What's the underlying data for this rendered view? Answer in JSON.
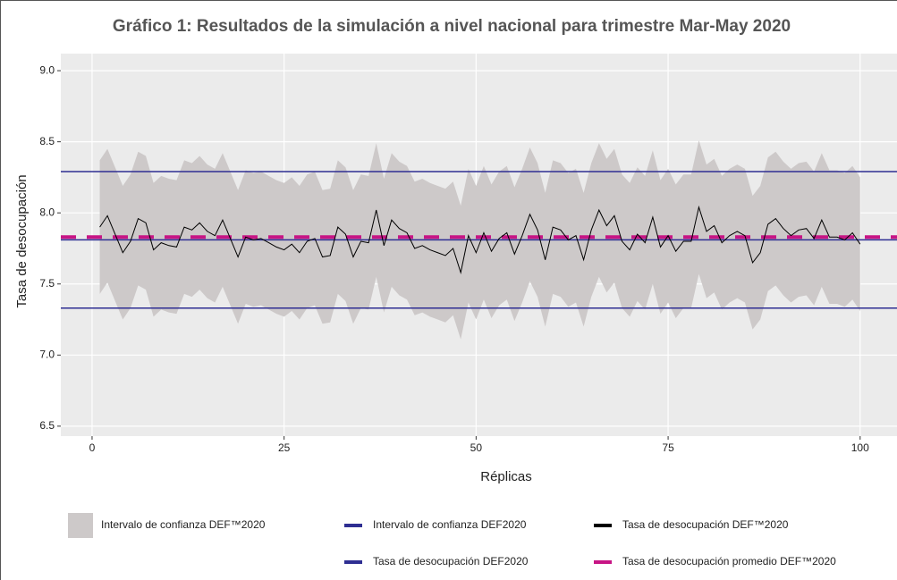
{
  "chart_data": {
    "type": "line",
    "title": "Gráfico 1: Resultados de la simulación a nivel nacional para trimestre Mar-May 2020",
    "x_label": "Réplicas",
    "y_label": "Tasa de desocupación",
    "xlim": [
      -4.07,
      104.8
    ],
    "ylim": [
      6.43,
      9.12
    ],
    "xticks": [
      0,
      25,
      50,
      75,
      100
    ],
    "yticks": [
      {
        "value": 9,
        "label": "9.0"
      },
      8.5,
      {
        "value": 8,
        "label": "8.0"
      },
      7.5,
      {
        "value": 7,
        "label": "7.0"
      },
      6.5
    ],
    "grid": true,
    "x": [
      1,
      2,
      3,
      4,
      5,
      6,
      7,
      8,
      9,
      10,
      11,
      12,
      13,
      14,
      15,
      16,
      17,
      18,
      19,
      20,
      21,
      22,
      23,
      24,
      25,
      26,
      27,
      28,
      29,
      30,
      31,
      32,
      33,
      34,
      35,
      36,
      37,
      38,
      39,
      40,
      41,
      42,
      43,
      44,
      45,
      46,
      47,
      48,
      49,
      50,
      51,
      52,
      53,
      54,
      55,
      56,
      57,
      58,
      59,
      60,
      61,
      62,
      63,
      64,
      65,
      66,
      67,
      68,
      69,
      70,
      71,
      72,
      73,
      74,
      75,
      76,
      77,
      78,
      79,
      80,
      81,
      82,
      83,
      84,
      85,
      86,
      87,
      88,
      89,
      90,
      91,
      92,
      93,
      94,
      95,
      96,
      97,
      98,
      99,
      100
    ],
    "band": {
      "name": "Intervalo de confianza DEF™2020",
      "color": "#cdc9c9",
      "upper": [
        8.37,
        8.45,
        8.32,
        8.19,
        8.27,
        8.43,
        8.4,
        8.21,
        8.26,
        8.24,
        8.23,
        8.37,
        8.35,
        8.4,
        8.34,
        8.31,
        8.42,
        8.29,
        8.16,
        8.3,
        8.28,
        8.29,
        8.26,
        8.23,
        8.21,
        8.25,
        8.19,
        8.27,
        8.29,
        8.16,
        8.17,
        8.37,
        8.32,
        8.16,
        8.27,
        8.26,
        8.49,
        8.24,
        8.42,
        8.36,
        8.33,
        8.22,
        8.24,
        8.21,
        8.19,
        8.17,
        8.22,
        8.05,
        8.31,
        8.19,
        8.33,
        8.2,
        8.29,
        8.33,
        8.18,
        8.31,
        8.46,
        8.35,
        8.14,
        8.37,
        8.35,
        8.28,
        8.31,
        8.14,
        8.35,
        8.49,
        8.38,
        8.45,
        8.27,
        8.21,
        8.32,
        8.26,
        8.44,
        8.23,
        8.31,
        8.2,
        8.27,
        8.27,
        8.51,
        8.34,
        8.38,
        8.26,
        8.31,
        8.34,
        8.31,
        8.12,
        8.19,
        8.39,
        8.43,
        8.36,
        8.31,
        8.35,
        8.36,
        8.29,
        8.42,
        8.3,
        8.3,
        8.28,
        8.33,
        8.25
      ],
      "lower": [
        7.43,
        7.51,
        7.38,
        7.25,
        7.33,
        7.49,
        7.46,
        7.27,
        7.32,
        7.3,
        7.29,
        7.43,
        7.41,
        7.46,
        7.4,
        7.37,
        7.48,
        7.35,
        7.22,
        7.36,
        7.34,
        7.35,
        7.32,
        7.29,
        7.27,
        7.31,
        7.25,
        7.33,
        7.35,
        7.22,
        7.23,
        7.43,
        7.38,
        7.22,
        7.33,
        7.32,
        7.55,
        7.3,
        7.48,
        7.42,
        7.39,
        7.28,
        7.3,
        7.27,
        7.25,
        7.23,
        7.28,
        7.11,
        7.37,
        7.25,
        7.39,
        7.26,
        7.35,
        7.39,
        7.24,
        7.37,
        7.52,
        7.41,
        7.2,
        7.43,
        7.41,
        7.34,
        7.37,
        7.2,
        7.41,
        7.55,
        7.44,
        7.51,
        7.33,
        7.27,
        7.38,
        7.32,
        7.5,
        7.29,
        7.37,
        7.26,
        7.33,
        7.33,
        7.57,
        7.4,
        7.44,
        7.32,
        7.37,
        7.4,
        7.37,
        7.18,
        7.25,
        7.45,
        7.49,
        7.42,
        7.37,
        7.41,
        7.42,
        7.35,
        7.48,
        7.36,
        7.36,
        7.34,
        7.39,
        7.31
      ]
    },
    "series": [
      {
        "name": "Tasa de desocupación DEF™2020",
        "color": "#000000",
        "values": [
          7.9,
          7.98,
          7.85,
          7.72,
          7.8,
          7.96,
          7.93,
          7.74,
          7.79,
          7.77,
          7.76,
          7.9,
          7.88,
          7.93,
          7.87,
          7.84,
          7.95,
          7.82,
          7.69,
          7.83,
          7.81,
          7.82,
          7.79,
          7.76,
          7.74,
          7.78,
          7.72,
          7.8,
          7.82,
          7.69,
          7.7,
          7.9,
          7.85,
          7.69,
          7.8,
          7.79,
          8.02,
          7.77,
          7.95,
          7.89,
          7.86,
          7.75,
          7.77,
          7.74,
          7.72,
          7.7,
          7.75,
          7.58,
          7.84,
          7.72,
          7.86,
          7.73,
          7.82,
          7.86,
          7.71,
          7.84,
          7.99,
          7.88,
          7.67,
          7.9,
          7.88,
          7.81,
          7.84,
          7.67,
          7.88,
          8.02,
          7.91,
          7.98,
          7.8,
          7.74,
          7.85,
          7.79,
          7.97,
          7.76,
          7.84,
          7.73,
          7.8,
          7.8,
          8.04,
          7.87,
          7.91,
          7.79,
          7.84,
          7.87,
          7.84,
          7.65,
          7.72,
          7.92,
          7.96,
          7.89,
          7.84,
          7.88,
          7.89,
          7.82,
          7.95,
          7.83,
          7.83,
          7.81,
          7.86,
          7.78
        ]
      }
    ],
    "reference_lines": [
      {
        "name": "Intervalo de confianza DEF2020",
        "color": "#2e2e92",
        "values": [
          8.29,
          7.33
        ]
      },
      {
        "name": "Tasa de desocupación DEF2020",
        "color": "#2e2e92",
        "values": [
          7.81
        ]
      }
    ],
    "mean_line": {
      "name": "Tasa de desocupación promedio DEF™2020",
      "color": "#c71585",
      "value": 7.83
    }
  }
}
